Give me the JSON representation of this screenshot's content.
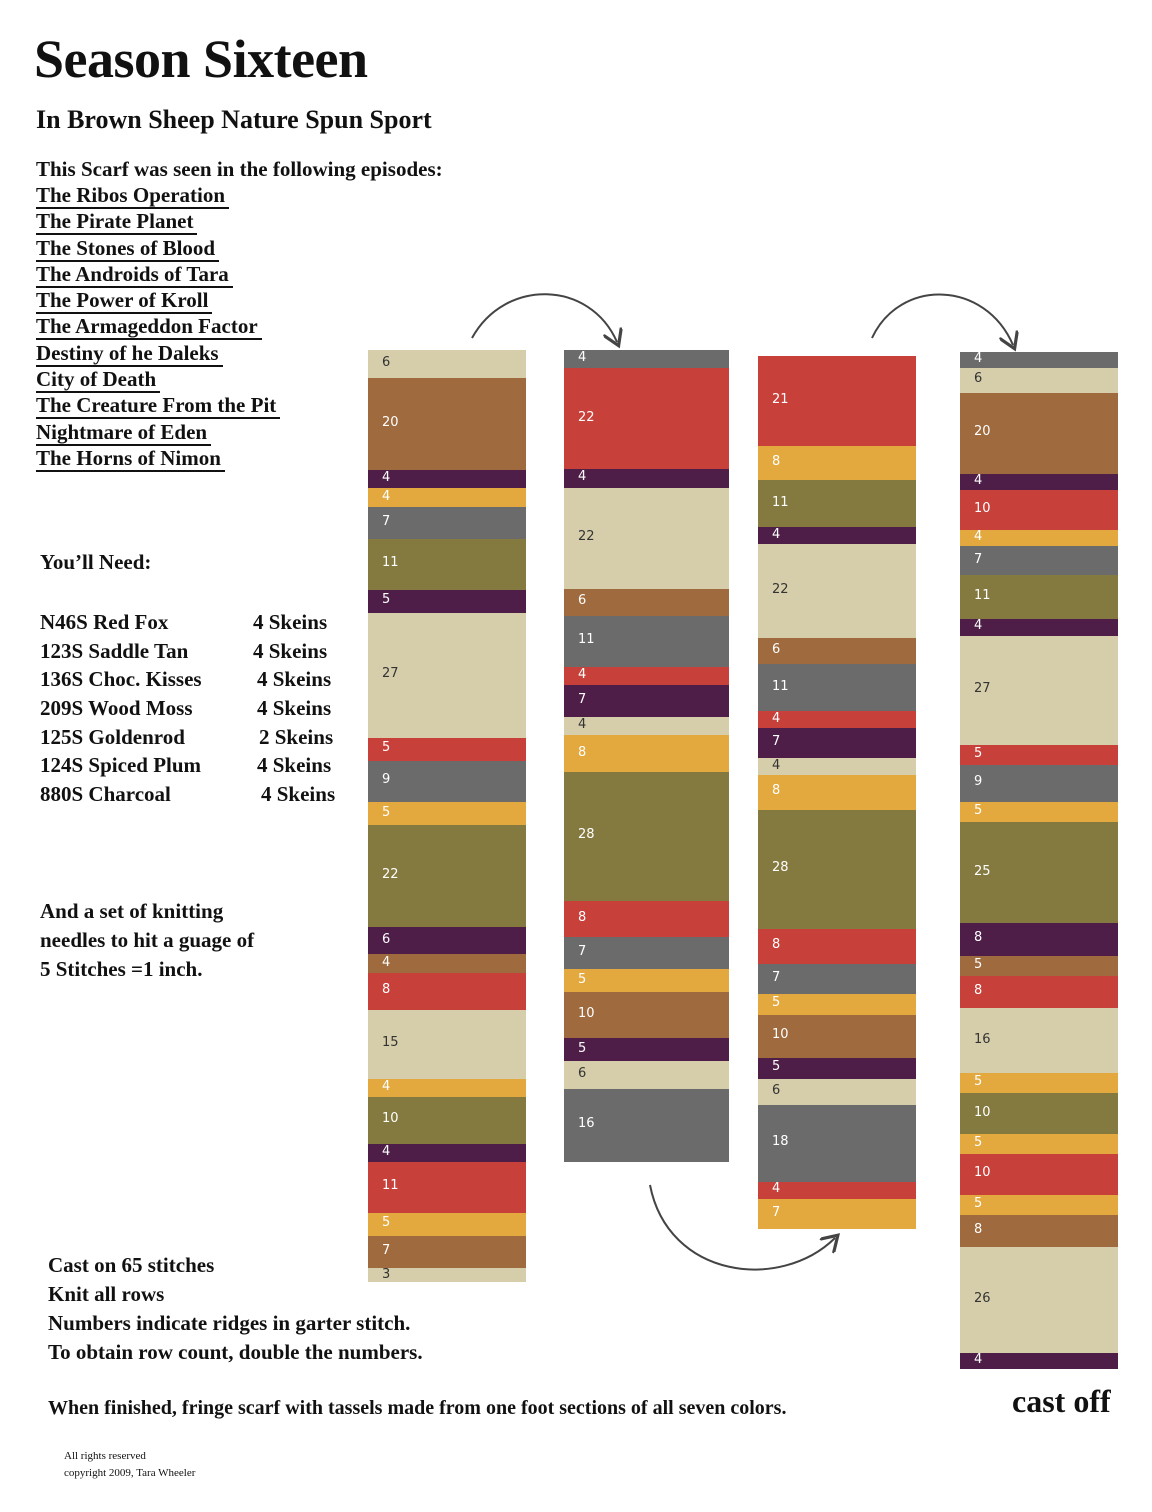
{
  "title": "Season Sixteen",
  "subtitle": "In Brown Sheep Nature Spun Sport",
  "intro": "This Scarf was seen in the following episodes:",
  "episodes": [
    "The Ribos Operation",
    "The Pirate Planet",
    "The Stones of Blood",
    "The Androids of Tara",
    "The Power of Kroll",
    "The Armageddon Factor",
    "Destiny of he Daleks",
    "City of Death",
    "The Creature From the Pit",
    "Nightmare of Eden",
    "The Horns of Nimon"
  ],
  "need_label": "You’ll Need:",
  "yarns": [
    {
      "name": "N46S Red Fox",
      "skeins": "4 Skeins"
    },
    {
      "name": "123S Saddle Tan",
      "skeins": "4 Skeins"
    },
    {
      "name": "136S Choc. Kisses",
      "skeins": "4 Skeins"
    },
    {
      "name": "209S Wood Moss",
      "skeins": "4 Skeins"
    },
    {
      "name": "125S Goldenrod",
      "skeins": "2 Skeins"
    },
    {
      "name": "124S Spiced Plum",
      "skeins": "4 Skeins"
    },
    {
      "name": "880S Charcoal",
      "skeins": "4 Skeins"
    }
  ],
  "needles": [
    "And a set of knitting",
    "needles to hit a guage of",
    "5 Stitches =1 inch."
  ],
  "cast_instructions": [
    "Cast on 65 stitches",
    "Knit all rows",
    "Numbers indicate ridges in garter stitch.",
    "To obtain row count, double the numbers."
  ],
  "finish": "When finished, fringe scarf with tassels made from one foot sections of all seven colors.",
  "cast_off": "cast off",
  "rights": [
    "All rights reserved",
    "copyright 2009, Tara Wheeler"
  ],
  "colors": {
    "tan": "#d6ceaa",
    "brown": "#9e6a3e",
    "plum": "#4e1e48",
    "gold": "#e3a93e",
    "gray": "#6b6b6b",
    "moss": "#847a40",
    "red": "#c8403a"
  },
  "columns": [
    {
      "stripes": [
        [
          "6",
          "tan"
        ],
        [
          "20",
          "brown"
        ],
        [
          "4",
          "plum"
        ],
        [
          "4",
          "gold"
        ],
        [
          "7",
          "gray"
        ],
        [
          "11",
          "moss"
        ],
        [
          "5",
          "plum"
        ],
        [
          "27",
          "tan"
        ],
        [
          "5",
          "red"
        ],
        [
          "9",
          "gray"
        ],
        [
          "5",
          "gold"
        ],
        [
          "22",
          "moss"
        ],
        [
          "6",
          "plum"
        ],
        [
          "4",
          "brown"
        ],
        [
          "8",
          "red"
        ],
        [
          "15",
          "tan"
        ],
        [
          "4",
          "gold"
        ],
        [
          "10",
          "moss"
        ],
        [
          "4",
          "plum"
        ],
        [
          "11",
          "red"
        ],
        [
          "5",
          "gold"
        ],
        [
          "7",
          "brown"
        ],
        [
          "3",
          "tan"
        ]
      ]
    },
    {
      "stripes": [
        [
          "4",
          "gray"
        ],
        [
          "22",
          "red"
        ],
        [
          "4",
          "plum"
        ],
        [
          "22",
          "tan"
        ],
        [
          "6",
          "brown"
        ],
        [
          "11",
          "gray"
        ],
        [
          "4",
          "red"
        ],
        [
          "7",
          "plum"
        ],
        [
          "4",
          "tan"
        ],
        [
          "8",
          "gold"
        ],
        [
          "28",
          "moss"
        ],
        [
          "8",
          "red"
        ],
        [
          "7",
          "gray"
        ],
        [
          "5",
          "gold"
        ],
        [
          "10",
          "brown"
        ],
        [
          "5",
          "plum"
        ],
        [
          "6",
          "tan"
        ],
        [
          "16",
          "gray"
        ]
      ]
    },
    {
      "stripes": [
        [
          "21",
          "red"
        ],
        [
          "8",
          "gold"
        ],
        [
          "11",
          "moss"
        ],
        [
          "4",
          "plum"
        ],
        [
          "22",
          "tan"
        ],
        [
          "6",
          "brown"
        ],
        [
          "11",
          "gray"
        ],
        [
          "4",
          "red"
        ],
        [
          "7",
          "plum"
        ],
        [
          "4",
          "tan"
        ],
        [
          "8",
          "gold"
        ],
        [
          "28",
          "moss"
        ],
        [
          "8",
          "red"
        ],
        [
          "7",
          "gray"
        ],
        [
          "5",
          "gold"
        ],
        [
          "10",
          "brown"
        ],
        [
          "5",
          "plum"
        ],
        [
          "6",
          "tan"
        ],
        [
          "18",
          "gray"
        ],
        [
          "4",
          "red"
        ],
        [
          "7",
          "gold"
        ]
      ]
    },
    {
      "stripes": [
        [
          "4",
          "gray"
        ],
        [
          "6",
          "tan"
        ],
        [
          "20",
          "brown"
        ],
        [
          "4",
          "plum"
        ],
        [
          "10",
          "red"
        ],
        [
          "4",
          "gold"
        ],
        [
          "7",
          "gray"
        ],
        [
          "11",
          "moss"
        ],
        [
          "4",
          "plum"
        ],
        [
          "27",
          "tan"
        ],
        [
          "5",
          "red"
        ],
        [
          "9",
          "gray"
        ],
        [
          "5",
          "gold"
        ],
        [
          "25",
          "moss"
        ],
        [
          "8",
          "plum"
        ],
        [
          "5",
          "brown"
        ],
        [
          "8",
          "red"
        ],
        [
          "16",
          "tan"
        ],
        [
          "5",
          "gold"
        ],
        [
          "10",
          "moss"
        ],
        [
          "5",
          "gold"
        ],
        [
          "10",
          "red"
        ],
        [
          "5",
          "gold"
        ],
        [
          "8",
          "brown"
        ],
        [
          "26",
          "tan"
        ],
        [
          "4",
          "plum"
        ]
      ]
    }
  ]
}
